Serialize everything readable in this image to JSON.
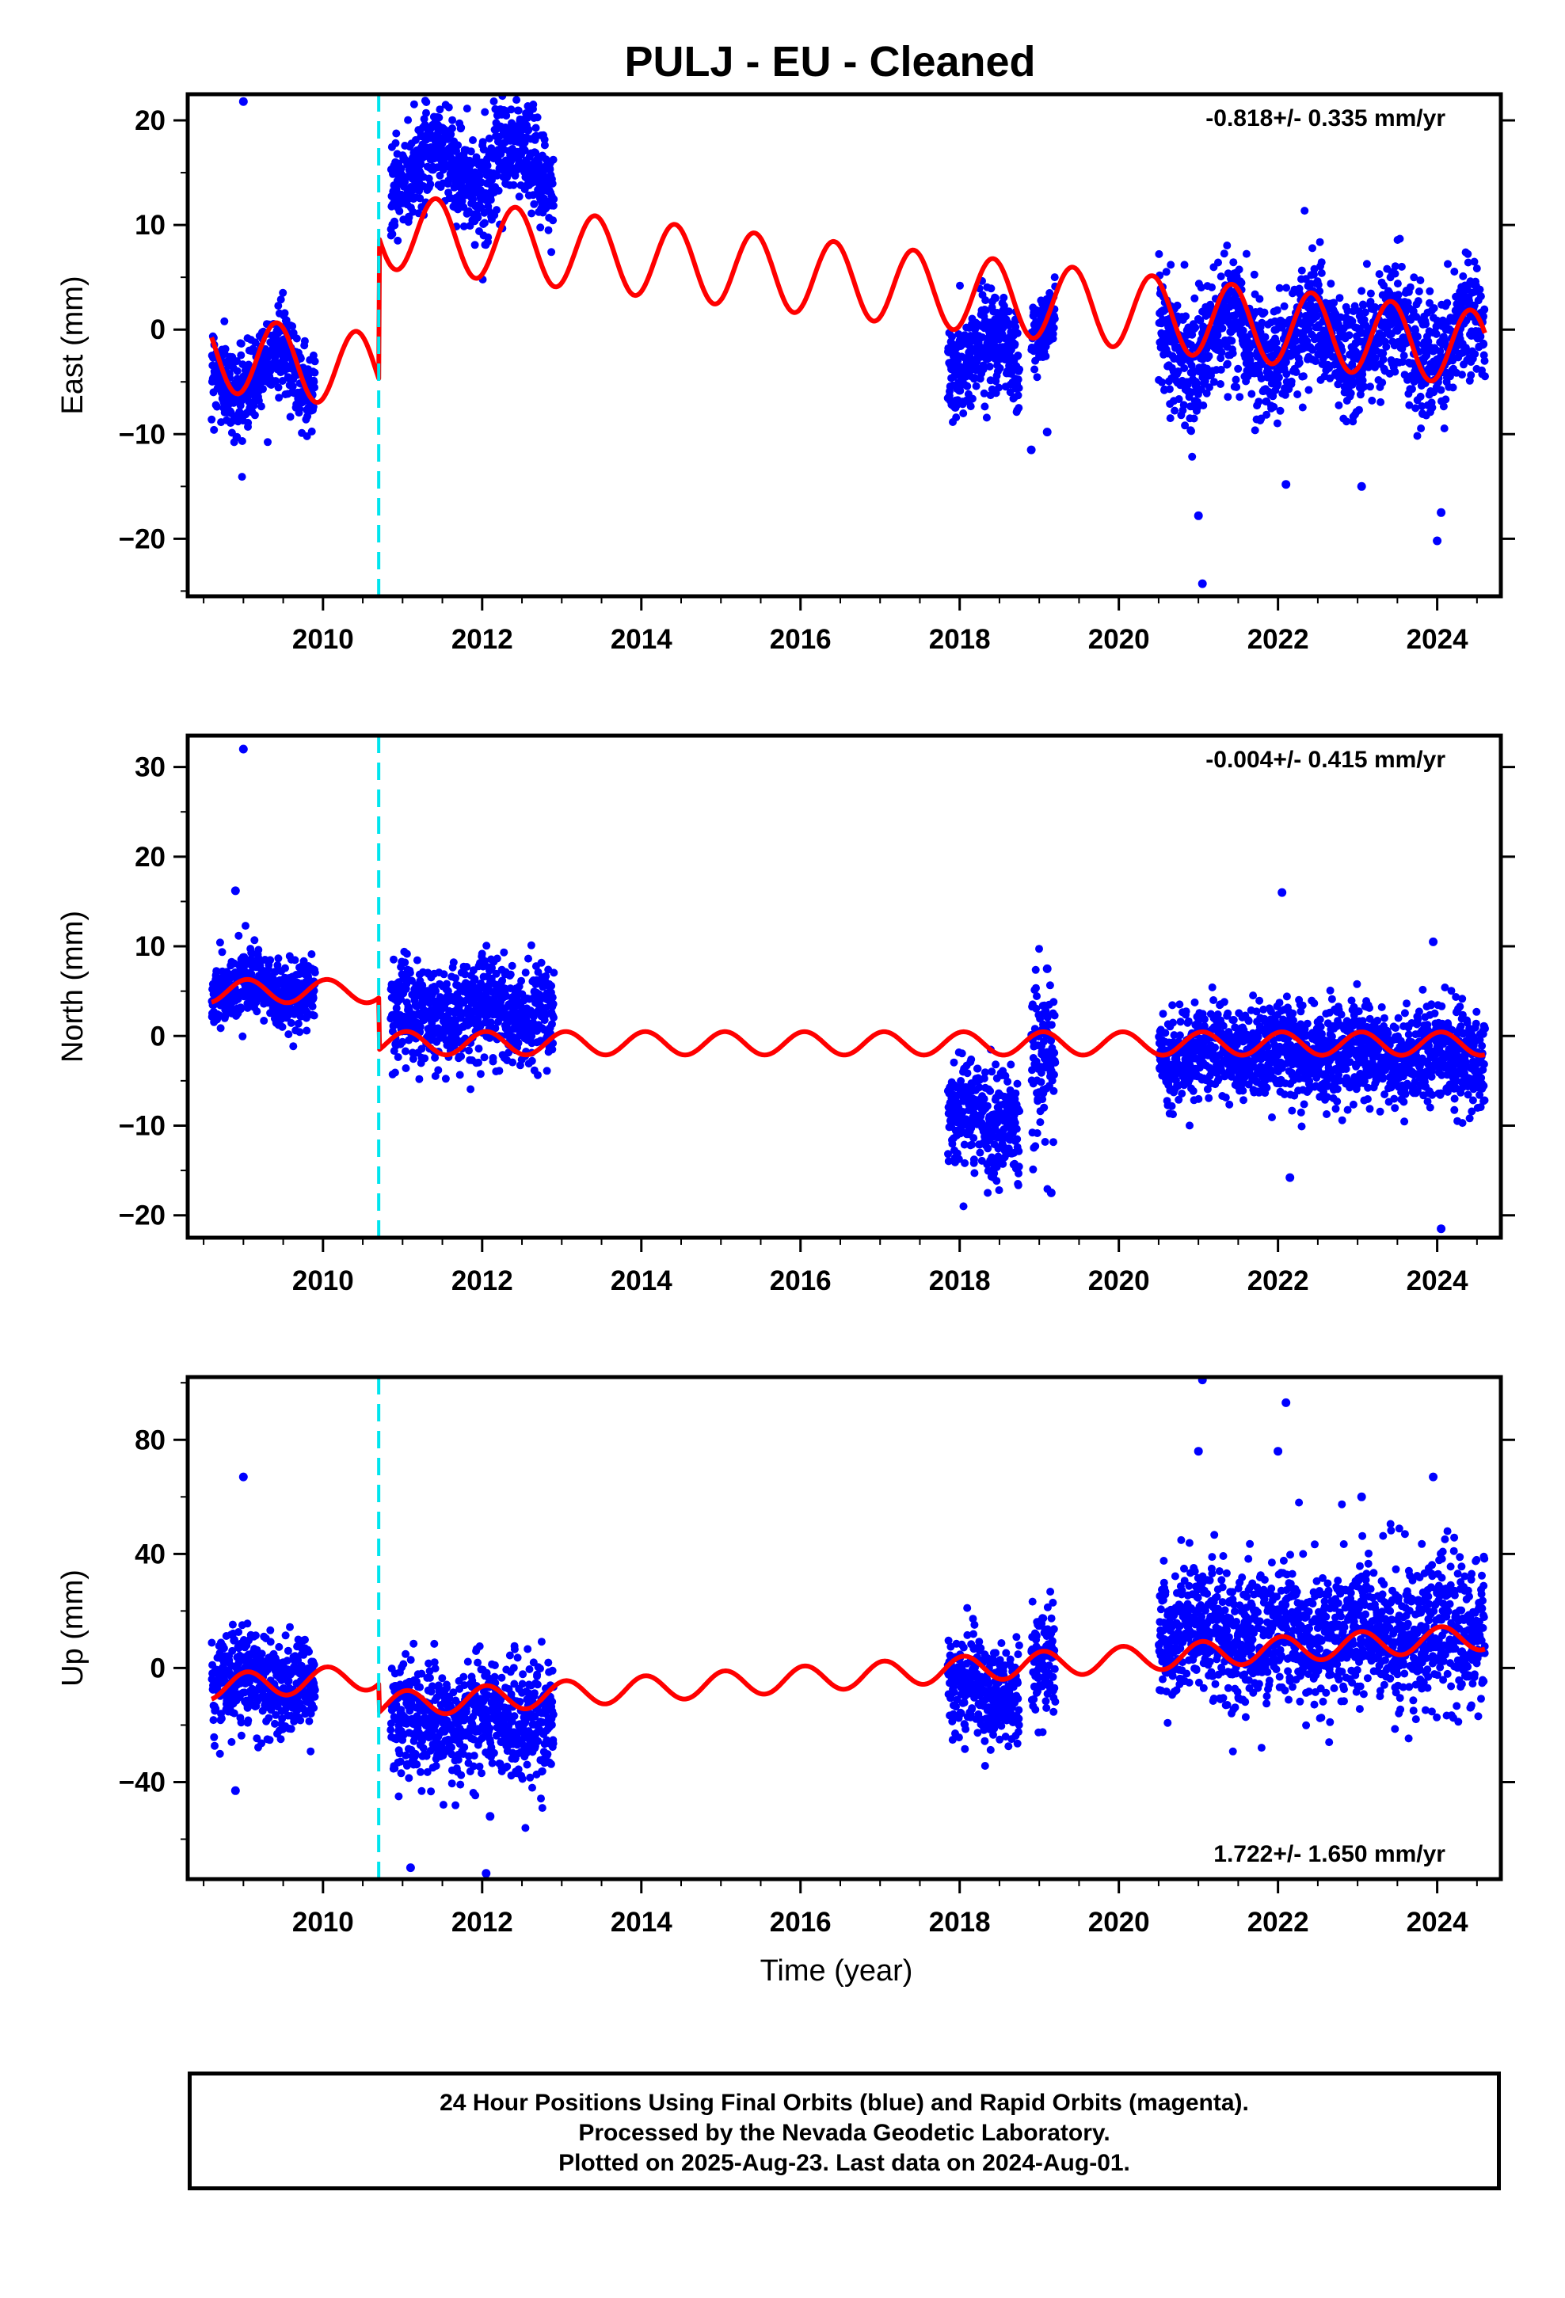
{
  "title": "PULJ  - EU - Cleaned",
  "footer": {
    "line1": "24 Hour Positions Using Final Orbits (blue) and Rapid Orbits (magenta).",
    "line2": "Processed by the Nevada Geodetic Laboratory.",
    "line3": "Plotted on 2025-Aug-23. Last data on 2024-Aug-01."
  },
  "colors": {
    "data": "#0000ff",
    "model": "#ff0000",
    "offset_line": "#00e5ee",
    "frame": "#000000"
  },
  "chart_data": [
    {
      "type": "scatter",
      "component": "East",
      "ylabel": "East (mm)",
      "xlabel": "",
      "xlim": [
        2008.3,
        2024.8
      ],
      "ylim": [
        -25.5,
        22.5
      ],
      "yticks": [
        -20,
        -10,
        0,
        10,
        20
      ],
      "yticklabels": [
        "−20",
        "−10",
        "0",
        "10",
        "20"
      ],
      "xticks": [
        2010,
        2012,
        2014,
        2016,
        2018,
        2020,
        2022,
        2024
      ],
      "xticklabels": [
        "2010",
        "2012",
        "2014",
        "2016",
        "2018",
        "2020",
        "2022",
        "2024"
      ],
      "rate": "-0.818+/- 0.335 mm/yr",
      "rate_position": "top-right",
      "offset_epoch": 2010.7,
      "model": {
        "pre_offset": -4.0,
        "post_offset": 9.5,
        "rate": -0.818,
        "annual_amplitude": 3.6,
        "annual_peak_phase": 0.42
      },
      "data_segments": [
        {
          "start": 2008.6,
          "end": 2009.9,
          "mean": -4.0,
          "scatter": 2.0
        },
        {
          "start": 2010.85,
          "end": 2012.9,
          "mean": 15.5,
          "scatter": 2.3
        },
        {
          "start": 2017.85,
          "end": 2018.75,
          "mean": -2.5,
          "scatter": 2.5
        },
        {
          "start": 2018.9,
          "end": 2019.2,
          "mean": 1.5,
          "scatter": 1.5
        },
        {
          "start": 2020.5,
          "end": 2024.6,
          "mean": -1.0,
          "scatter": 2.8
        }
      ],
      "outliers": [
        {
          "x": 2009.0,
          "y": 21.8
        },
        {
          "x": 2018.9,
          "y": -11.5
        },
        {
          "x": 2021.0,
          "y": -17.8
        },
        {
          "x": 2021.05,
          "y": -24.3
        },
        {
          "x": 2022.1,
          "y": -14.8
        },
        {
          "x": 2023.05,
          "y": -15.0
        },
        {
          "x": 2024.05,
          "y": -17.5
        },
        {
          "x": 2024.0,
          "y": -20.2
        },
        {
          "x": 2019.1,
          "y": -9.8
        }
      ]
    },
    {
      "type": "scatter",
      "component": "North",
      "ylabel": "North (mm)",
      "xlabel": "",
      "xlim": [
        2008.3,
        2024.8
      ],
      "ylim": [
        -22.5,
        33.5
      ],
      "yticks": [
        -20,
        -10,
        0,
        10,
        20,
        30
      ],
      "yticklabels": [
        "−20",
        "−10",
        "0",
        "10",
        "20",
        "30"
      ],
      "xticks": [
        2010,
        2012,
        2014,
        2016,
        2018,
        2020,
        2022,
        2024
      ],
      "xticklabels": [
        "2010",
        "2012",
        "2014",
        "2016",
        "2018",
        "2020",
        "2022",
        "2024"
      ],
      "rate": "-0.004+/- 0.415 mm/yr",
      "rate_position": "top-right",
      "offset_epoch": 2010.7,
      "model": {
        "pre_offset": 5.0,
        "post_offset": -0.8,
        "rate": -0.004,
        "annual_amplitude": 1.3,
        "annual_peak_phase": 0.05
      },
      "data_segments": [
        {
          "start": 2008.6,
          "end": 2009.9,
          "mean": 5.0,
          "scatter": 1.8
        },
        {
          "start": 2010.85,
          "end": 2012.9,
          "mean": 2.5,
          "scatter": 2.8
        },
        {
          "start": 2017.85,
          "end": 2018.75,
          "mean": -9.5,
          "scatter": 3.0
        },
        {
          "start": 2018.9,
          "end": 2019.2,
          "mean": -3.0,
          "scatter": 4.5
        },
        {
          "start": 2020.5,
          "end": 2024.6,
          "mean": -2.0,
          "scatter": 2.6
        }
      ],
      "outliers": [
        {
          "x": 2009.0,
          "y": 32.0
        },
        {
          "x": 2008.9,
          "y": 16.2
        },
        {
          "x": 2022.05,
          "y": 16.0
        },
        {
          "x": 2022.15,
          "y": -15.8
        },
        {
          "x": 2024.05,
          "y": -21.5
        },
        {
          "x": 2023.95,
          "y": 10.5
        },
        {
          "x": 2019.15,
          "y": -17.5
        },
        {
          "x": 2019.1,
          "y": 7.5
        }
      ]
    },
    {
      "type": "scatter",
      "component": "Up",
      "ylabel": "Up (mm)",
      "xlabel": "Time (year)",
      "xlim": [
        2008.3,
        2024.8
      ],
      "ylim": [
        -74,
        102
      ],
      "yticks": [
        -40,
        0,
        40,
        80
      ],
      "yticklabels": [
        "−40",
        "0",
        "40",
        "80"
      ],
      "xticks": [
        2010,
        2012,
        2014,
        2016,
        2018,
        2020,
        2022,
        2024
      ],
      "xticklabels": [
        "2010",
        "2012",
        "2014",
        "2016",
        "2018",
        "2020",
        "2022",
        "2024"
      ],
      "rate": "1.722+/- 1.650 mm/yr",
      "rate_position": "bottom-right",
      "offset_epoch": 2010.7,
      "model": {
        "pre_offset": -3.0,
        "post_offset": -13.0,
        "rate": 1.722,
        "annual_amplitude": 4.5,
        "annual_peak_phase": 0.05
      },
      "data_segments": [
        {
          "start": 2008.6,
          "end": 2009.9,
          "mean": -5.0,
          "scatter": 8.0
        },
        {
          "start": 2010.85,
          "end": 2012.9,
          "mean": -18.0,
          "scatter": 10.0
        },
        {
          "start": 2017.85,
          "end": 2018.75,
          "mean": -8.0,
          "scatter": 9.0
        },
        {
          "start": 2018.9,
          "end": 2019.2,
          "mean": 0.0,
          "scatter": 9.0
        },
        {
          "start": 2020.5,
          "end": 2024.6,
          "mean": 12.0,
          "scatter": 12.0
        }
      ],
      "outliers": [
        {
          "x": 2009.0,
          "y": 67.0
        },
        {
          "x": 2008.9,
          "y": -43.0
        },
        {
          "x": 2021.05,
          "y": 101.0
        },
        {
          "x": 2022.1,
          "y": 93.0
        },
        {
          "x": 2021.0,
          "y": 76.0
        },
        {
          "x": 2022.0,
          "y": 76.0
        },
        {
          "x": 2023.05,
          "y": 60.0
        },
        {
          "x": 2023.95,
          "y": 67.0
        },
        {
          "x": 2012.05,
          "y": -72.0
        },
        {
          "x": 2011.1,
          "y": -70.0
        },
        {
          "x": 2012.1,
          "y": -52.0
        }
      ]
    }
  ]
}
